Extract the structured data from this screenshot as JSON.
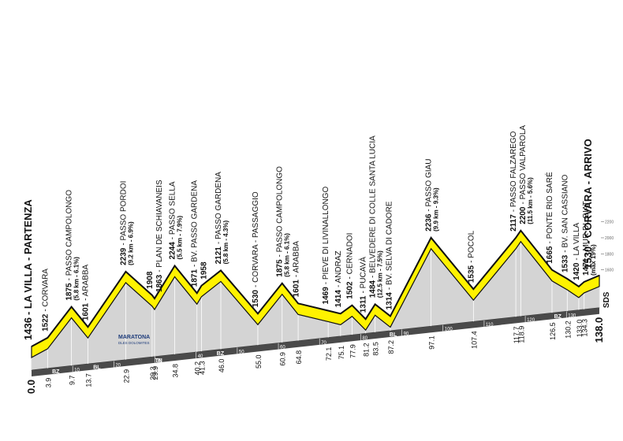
{
  "chart_data": {
    "type": "profile",
    "x": [
      0,
      3.9,
      9.7,
      13.7,
      22.9,
      29.3,
      29.9,
      34.8,
      40.2,
      41.3,
      46.0,
      55.0,
      60.9,
      64.8,
      72.1,
      75.1,
      77.9,
      81.2,
      83.5,
      87.2,
      97.1,
      107.4,
      117.7,
      118.9,
      126.5,
      130.2,
      133.0,
      134.3,
      138.0
    ],
    "x_labels": [
      "0.0",
      "3.9",
      "9.7",
      "13.7",
      "22.9",
      "29.3",
      "29.9",
      "34.8",
      "40.2",
      "41.3",
      "46.0",
      "55.0",
      "60.9",
      "64.8",
      "72.1",
      "75.1",
      "77.9",
      "81.2",
      "83.5",
      "87.2",
      "97.1",
      "107.4",
      "117.7",
      "118.9",
      "126.5",
      "130.2",
      "133.0",
      "134.3",
      "138.0"
    ],
    "values": [
      1436,
      1522,
      1875,
      1601,
      2239,
      1908,
      1863,
      2244,
      1871,
      1958,
      2121,
      1530,
      1875,
      1601,
      1469,
      1414,
      1502,
      1311,
      1484,
      1314,
      2236,
      1535,
      2117,
      2200,
      1665,
      1533,
      1420,
      1471,
      1530
    ],
    "names": [
      "- LA VILLA - PARTENZA",
      "- CORVARA",
      "- PASSO CAMPOLONGO",
      "- ARABBA",
      "- PASSO PORDOI",
      null,
      "- PLAN DE SCHIAVANEIS",
      "- PASSO SELLA",
      "- BV. PASSO GARDENA",
      null,
      "- PASSO GARDENA",
      "- CORVARA - PASSAGGIO",
      "- PASSO CAMPOLONGO",
      "- ARABBA",
      "- PIEVE DI LIVINALLONGO",
      "- ANDRAZ",
      "- CERNADOI",
      "- PUCAVÀ",
      "- BELVEDERE DI COLLE SANTA LUCIA",
      "- BV. SELVA DI CADORE",
      "- PASSO GIAU",
      "- POCOL",
      "- PASSO FALZAREGO",
      "- PASSO VALPAROLA",
      "- PONTE RIO SARÉ",
      "- BV. SAN CASSIANO",
      "- LA VILLA",
      "- MUR DL GIAT",
      "- CORVARA - ARRIVO"
    ],
    "climbs": [
      null,
      null,
      "(5.8 km - 6.1%)",
      null,
      "(9.2 km - 6.9%)",
      null,
      null,
      "(5.5 km - 7.9%)",
      null,
      null,
      "(5.8 km - 4.3%)",
      null,
      "(5.8 km - 6.1%)",
      null,
      null,
      null,
      null,
      null,
      "(12.5 km - 7.5%)",
      null,
      "(9.9 km - 9.3%)",
      null,
      null,
      "(11.5 km - 5.6%)",
      null,
      null,
      null,
      "(max 19%)",
      null
    ],
    "kmticks": [
      10,
      20,
      30,
      40,
      50,
      60,
      70,
      80,
      90,
      100,
      110,
      120,
      130
    ],
    "regions": [
      {
        "label": "BZ",
        "km": 5
      },
      {
        "label": "BL",
        "km": 15
      },
      {
        "label": "TN",
        "km": 30
      },
      {
        "label": "BZ",
        "km": 45
      },
      {
        "label": "BL",
        "km": 87
      },
      {
        "label": "BZ",
        "km": 127
      }
    ],
    "yticks": [
      1600,
      1800,
      2000,
      2200
    ],
    "logo": [
      "MARATONA",
      "DLES DOLOMITES"
    ],
    "sponsor": "SDS",
    "ribbon_color": "#fff200",
    "ground_color": "#d4d4d4"
  }
}
